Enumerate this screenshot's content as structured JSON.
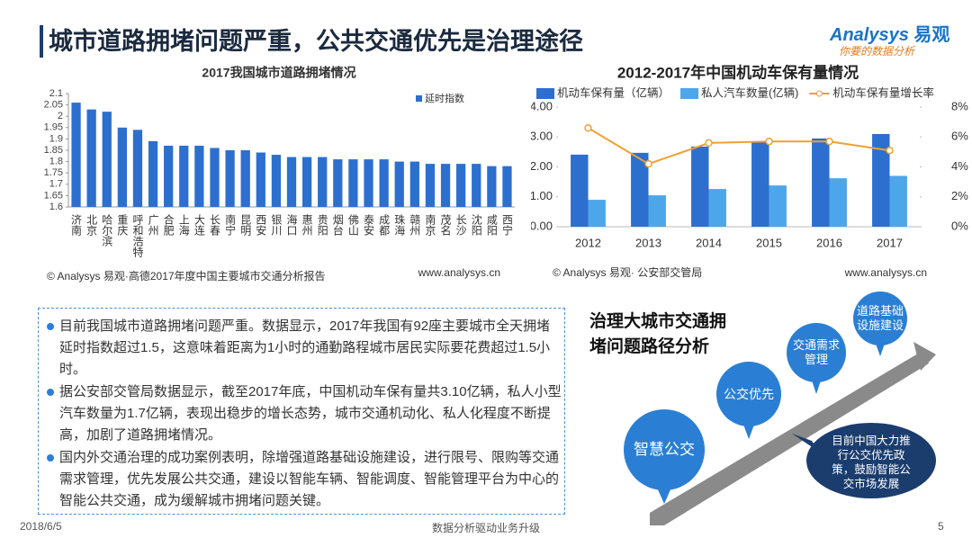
{
  "header": {
    "title": "城市道路拥堵问题严重，公共交通优先是治理途径",
    "logo_brand": "Analysys",
    "logo_cn": "易观",
    "logo_tagline": "你要的数据分析"
  },
  "chart_data": [
    {
      "type": "bar",
      "title": "2017我国城市道路拥堵情况",
      "categories": [
        "济南",
        "北京",
        "哈尔滨",
        "重庆",
        "呼和浩特",
        "广州",
        "合肥",
        "上海",
        "大连",
        "长春",
        "南宁",
        "昆明",
        "西安",
        "银川",
        "海口",
        "惠州",
        "贵阳",
        "烟台",
        "佛山",
        "泰安",
        "成都",
        "珠海",
        "赣州",
        "南京",
        "茂名",
        "长沙",
        "沈阳",
        "咸阳",
        "西宁"
      ],
      "series": [
        {
          "name": "延时指数",
          "color": "#2d6fcf",
          "values": [
            2.06,
            2.03,
            2.02,
            1.95,
            1.94,
            1.89,
            1.87,
            1.87,
            1.87,
            1.86,
            1.85,
            1.85,
            1.84,
            1.83,
            1.82,
            1.82,
            1.82,
            1.81,
            1.81,
            1.81,
            1.81,
            1.8,
            1.8,
            1.79,
            1.79,
            1.79,
            1.79,
            1.78,
            1.78
          ]
        }
      ],
      "ylim": [
        1.6,
        2.1
      ],
      "yticks": [
        1.6,
        1.65,
        1.7,
        1.75,
        1.8,
        1.85,
        1.9,
        1.95,
        2,
        2.05,
        2.1
      ],
      "legend": "top-right",
      "source": "© Analysys 易观·高德2017年度中国主要城市交通分析报告",
      "website": "www.analysys.cn"
    },
    {
      "type": "bar",
      "title": "2012-2017年中国机动车保有量情况",
      "categories": [
        "2012",
        "2013",
        "2014",
        "2015",
        "2016",
        "2017"
      ],
      "series": [
        {
          "name": "机动车保有量（亿辆）",
          "color": "#2d6fcf",
          "values": [
            2.41,
            2.47,
            2.68,
            2.83,
            2.95,
            3.1
          ]
        },
        {
          "name": "私人汽车数量(亿辆)",
          "color": "#4ea6ea",
          "values": [
            0.9,
            1.05,
            1.26,
            1.38,
            1.62,
            1.7
          ]
        },
        {
          "name": "机动车保有量增长率",
          "color": "#f0a030",
          "type": "line",
          "axis": "y2",
          "values": [
            6.6,
            4.2,
            5.6,
            5.7,
            5.7,
            5.1
          ]
        }
      ],
      "ylim": [
        0,
        4
      ],
      "yticks": [
        {
          "value": 0,
          "label": "0.00"
        },
        {
          "value": 1,
          "label": "1.00"
        },
        {
          "value": 2,
          "label": "2.00"
        },
        {
          "value": 3,
          "label": "3.00"
        },
        {
          "value": 4,
          "label": "4.00"
        }
      ],
      "y2lim": [
        0,
        8
      ],
      "y2ticks": [
        {
          "value": 0,
          "label": "0%"
        },
        {
          "value": 2,
          "label": "2%"
        },
        {
          "value": 4,
          "label": "4%"
        },
        {
          "value": 6,
          "label": "6%"
        },
        {
          "value": 8,
          "label": "8%"
        }
      ],
      "legend": "top",
      "source": "© Analysys 易观· 公安部交管局",
      "website": "www.analysys.cn"
    }
  ],
  "bullets": [
    "目前我国城市道路拥堵问题严重。数据显示，2017年我国有92座主要城市全天拥堵延时指数超过1.5，这意味着距离为1小时的通勤路程城市居民实际要花费超过1.5小时。",
    "据公安部交管局数据显示，截至2017年底，中国机动车保有量共3.10亿辆，私人小型汽车数量为1.7亿辆，表现出稳步的增长态势，城市交通机动化、私人化程度不断提高，加剧了道路拥堵情况。",
    "国内外交通治理的成功案例表明，除增强道路基础设施建设，进行限号、限购等交通需求管理，优先发展公共交通，建设以智能车辆、智能调度、智能管理平台为中心的智能公共交通，成为缓解城市拥堵问题关键。"
  ],
  "diagram": {
    "title": "治理大城市交通拥堵问题路径分析",
    "steps": [
      "智慧公交",
      "公交优先",
      "交通需求管理",
      "道路基础设施建设"
    ],
    "note": "目前中国大力推行公交优先政策，鼓励智能公交市场发展"
  },
  "footer": {
    "date": "2018/6/5",
    "slogan": "数据分析驱动业务升级",
    "page": "5"
  }
}
